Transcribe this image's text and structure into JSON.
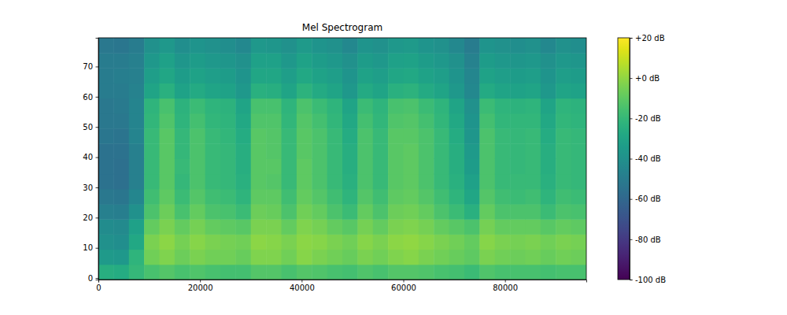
{
  "chart_data": {
    "type": "heatmap",
    "title": "Mel Spectrogram",
    "color": "viridis",
    "xlim": [
      0,
      96000
    ],
    "xticks": [
      0,
      20000,
      40000,
      60000,
      80000
    ],
    "ylim": [
      -0.5,
      79.5
    ],
    "yticks": [
      0,
      10,
      20,
      30,
      40,
      50,
      60,
      70
    ],
    "x_edges": [
      0,
      3000,
      6000,
      9000,
      12000,
      15000,
      18000,
      21000,
      24000,
      27000,
      30000,
      33000,
      36000,
      39000,
      42000,
      45000,
      48000,
      51000,
      54000,
      57000,
      60000,
      63000,
      66000,
      69000,
      72000,
      75000,
      78000,
      81000,
      84000,
      87000,
      90000,
      93000,
      96000
    ],
    "y_edges": [
      -0.5,
      4.5,
      9.5,
      14.5,
      19.5,
      24.5,
      29.5,
      34.5,
      39.5,
      44.5,
      49.5,
      54.5,
      59.5,
      64.5,
      69.5,
      74.5,
      79.5
    ],
    "cells": [
      [
        -25,
        -35,
        -40,
        -42,
        -48,
        -52,
        -55,
        -55,
        -55,
        -53,
        -52,
        -52,
        -50,
        -50,
        -50,
        -52
      ],
      [
        -26,
        -36,
        -41,
        -43,
        -49,
        -53,
        -56,
        -56,
        -55,
        -54,
        -52,
        -51,
        -50,
        -49,
        -50,
        -53
      ],
      [
        -20,
        -22,
        -28,
        -32,
        -40,
        -45,
        -48,
        -48,
        -48,
        -46,
        -46,
        -46,
        -47,
        -48,
        -48,
        -50
      ],
      [
        -15,
        -6,
        -4,
        -9,
        -14,
        -17,
        -19,
        -19,
        -19,
        -19,
        -21,
        -22,
        -30,
        -33,
        -36,
        -40
      ],
      [
        -12,
        -3,
        -1,
        -4,
        -7,
        -10,
        -11,
        -11,
        -11,
        -11,
        -13,
        -15,
        -24,
        -29,
        -32,
        -36
      ],
      [
        -15,
        -7,
        -5,
        -9,
        -15,
        -18,
        -20,
        -19,
        -20,
        -20,
        -22,
        -23,
        -31,
        -34,
        -37,
        -41
      ],
      [
        -13,
        -4,
        -2,
        -5,
        -9,
        -12,
        -14,
        -14,
        -14,
        -14,
        -16,
        -18,
        -27,
        -31,
        -34,
        -38
      ],
      [
        -15,
        -6,
        -4,
        -9,
        -14,
        -17,
        -19,
        -19,
        -19,
        -19,
        -21,
        -22,
        -30,
        -33,
        -36,
        -40
      ],
      [
        -16,
        -6,
        -5,
        -10,
        -15,
        -18,
        -20,
        -20,
        -20,
        -21,
        -22,
        -23,
        -31,
        -34,
        -37,
        -41
      ],
      [
        -16,
        -8,
        -6,
        -11,
        -18,
        -22,
        -24,
        -25,
        -25,
        -26,
        -28,
        -30,
        -36,
        -38,
        -40,
        -44
      ],
      [
        -12,
        -3,
        -1,
        -4,
        -7,
        -10,
        -11,
        -11,
        -11,
        -11,
        -13,
        -15,
        -24,
        -29,
        -32,
        -36
      ],
      [
        -12,
        -3,
        -2,
        -4,
        -8,
        -10,
        -12,
        -11,
        -12,
        -12,
        -13,
        -15,
        -25,
        -29,
        -32,
        -37
      ],
      [
        -15,
        -6,
        -4,
        -9,
        -14,
        -17,
        -19,
        -19,
        -19,
        -19,
        -21,
        -22,
        -30,
        -33,
        -36,
        -40
      ],
      [
        -12,
        -2,
        -1,
        -3,
        -6,
        -9,
        -10,
        -10,
        -11,
        -11,
        -12,
        -14,
        -23,
        -28,
        -31,
        -35
      ],
      [
        -13,
        -4,
        -2,
        -5,
        -9,
        -12,
        -14,
        -14,
        -14,
        -14,
        -16,
        -18,
        -27,
        -31,
        -34,
        -38
      ],
      [
        -15,
        -6,
        -4,
        -9,
        -14,
        -17,
        -19,
        -19,
        -19,
        -19,
        -21,
        -22,
        -30,
        -33,
        -36,
        -40
      ],
      [
        -16,
        -8,
        -6,
        -11,
        -18,
        -22,
        -24,
        -25,
        -25,
        -26,
        -28,
        -30,
        -36,
        -38,
        -40,
        -44
      ],
      [
        -13,
        -4,
        -2,
        -5,
        -9,
        -12,
        -14,
        -14,
        -14,
        -14,
        -16,
        -18,
        -27,
        -31,
        -34,
        -38
      ],
      [
        -15,
        -6,
        -4,
        -9,
        -14,
        -17,
        -19,
        -19,
        -19,
        -19,
        -21,
        -22,
        -30,
        -33,
        -36,
        -40
      ],
      [
        -12,
        -3,
        -1,
        -4,
        -7,
        -10,
        -11,
        -11,
        -11,
        -11,
        -13,
        -15,
        -24,
        -29,
        -32,
        -36
      ],
      [
        -12,
        -2,
        0,
        -3,
        -6,
        -9,
        -10,
        -10,
        -10,
        -11,
        -12,
        -14,
        -23,
        -28,
        -31,
        -35
      ],
      [
        -13,
        -4,
        -2,
        -5,
        -9,
        -12,
        -14,
        -14,
        -14,
        -14,
        -16,
        -18,
        -27,
        -31,
        -34,
        -38
      ],
      [
        -15,
        -6,
        -4,
        -9,
        -14,
        -17,
        -19,
        -19,
        -19,
        -19,
        -21,
        -22,
        -30,
        -33,
        -36,
        -40
      ],
      [
        -16,
        -8,
        -6,
        -11,
        -18,
        -22,
        -24,
        -25,
        -25,
        -26,
        -28,
        -30,
        -36,
        -38,
        -40,
        -44
      ],
      [
        -18,
        -10,
        -9,
        -14,
        -24,
        -29,
        -32,
        -34,
        -35,
        -37,
        -38,
        -40,
        -44,
        -45,
        -47,
        -50
      ],
      [
        -13,
        -4,
        -2,
        -5,
        -9,
        -12,
        -14,
        -14,
        -14,
        -14,
        -16,
        -18,
        -27,
        -31,
        -34,
        -38
      ],
      [
        -15,
        -6,
        -4,
        -9,
        -14,
        -17,
        -19,
        -19,
        -19,
        -19,
        -21,
        -22,
        -30,
        -33,
        -36,
        -40
      ],
      [
        -15,
        -7,
        -5,
        -9,
        -14,
        -18,
        -19,
        -20,
        -20,
        -20,
        -21,
        -23,
        -31,
        -34,
        -37,
        -41
      ],
      [
        -15,
        -6,
        -4,
        -9,
        -14,
        -17,
        -19,
        -19,
        -19,
        -19,
        -21,
        -22,
        -30,
        -33,
        -36,
        -40
      ],
      [
        -16,
        -8,
        -6,
        -11,
        -18,
        -22,
        -24,
        -25,
        -25,
        -26,
        -28,
        -30,
        -36,
        -38,
        -40,
        -44
      ],
      [
        -15,
        -6,
        -4,
        -9,
        -14,
        -17,
        -19,
        -19,
        -19,
        -19,
        -21,
        -22,
        -30,
        -33,
        -36,
        -40
      ],
      [
        -15,
        -7,
        -5,
        -10,
        -15,
        -18,
        -20,
        -20,
        -20,
        -20,
        -22,
        -23,
        -31,
        -34,
        -37,
        -41
      ]
    ],
    "colorbar": {
      "range": [
        -100,
        20
      ],
      "ticks": [
        {
          "value": -100,
          "label": "-100 dB"
        },
        {
          "value": -80,
          "label": "-80 dB"
        },
        {
          "value": -60,
          "label": "-60 dB"
        },
        {
          "value": -40,
          "label": "-40 dB"
        },
        {
          "value": -20,
          "label": "-20 dB"
        },
        {
          "value": 0,
          "label": "+0 dB"
        },
        {
          "value": 20,
          "label": "+20 dB"
        }
      ]
    }
  }
}
